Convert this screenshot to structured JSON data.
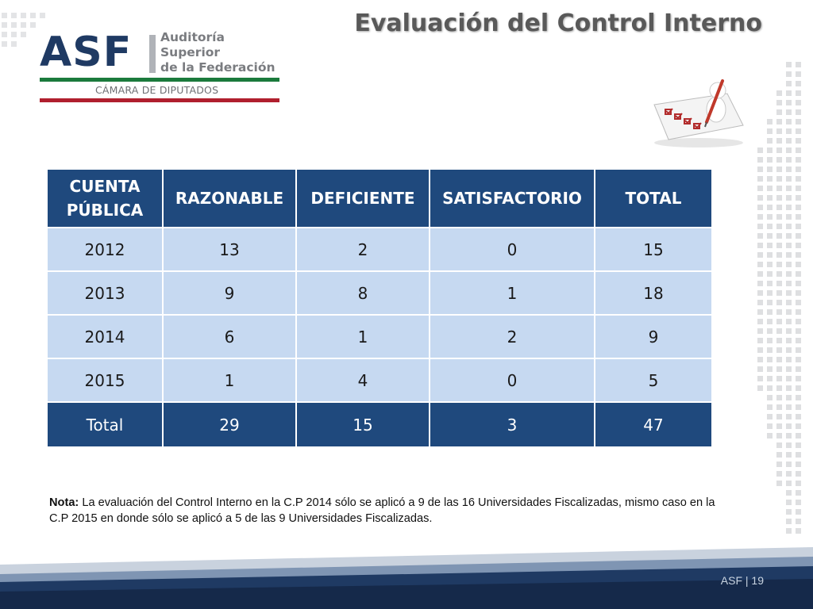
{
  "slide": {
    "title": "Evaluación del Control Interno",
    "page_label": "ASF | 19"
  },
  "logo": {
    "letters": "ASF",
    "name_lines": [
      "Auditoría",
      "Superior",
      "de la Federación"
    ],
    "chamber": "CÁMARA DE DIPUTADOS",
    "colors": {
      "navy": "#1f3a63",
      "gray": "#7a7c80",
      "green": "#1b7a3c",
      "red": "#b01f2e"
    }
  },
  "illustration": {
    "icon": "checklist-clipboard-figure-icon"
  },
  "table": {
    "headers": [
      "CUENTA\nPÚBLICA",
      "RAZONABLE",
      "DEFICIENTE",
      "SATISFACTORIO",
      "TOTAL"
    ],
    "rows": [
      [
        "2012",
        "13",
        "2",
        "0",
        "15"
      ],
      [
        "2013",
        "9",
        "8",
        "1",
        "18"
      ],
      [
        "2014",
        "6",
        "1",
        "2",
        "9"
      ],
      [
        "2015",
        "1",
        "4",
        "0",
        "5"
      ]
    ],
    "total_row": [
      "Total",
      "29",
      "15",
      "3",
      "47"
    ],
    "colors": {
      "header": "#1f497d",
      "body": "#c6d9f1"
    }
  },
  "note": {
    "label": "Nota:",
    "text": " La evaluación del Control Interno en la C.P 2014 sólo se aplicó a 9 de las 16 Universidades Fiscalizadas, mismo caso en la C.P 2015 en donde sólo se aplicó a 5 de las 9 Universidades Fiscalizadas."
  }
}
